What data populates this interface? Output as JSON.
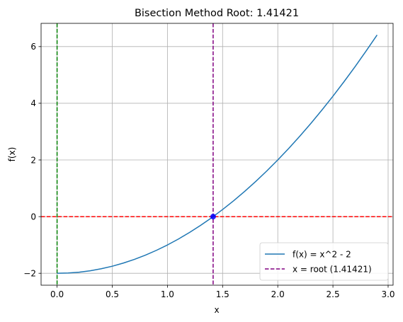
{
  "chart_data": {
    "type": "line",
    "title": "Bisection Method Root: 1.41421",
    "xlabel": "x",
    "ylabel": "f(x)",
    "xlim": [
      -0.145,
      3.045
    ],
    "ylim": [
      -2.42,
      6.82
    ],
    "grid": true,
    "x_ticks": [
      0.0,
      0.5,
      1.0,
      1.5,
      2.0,
      2.5,
      3.0
    ],
    "x_tick_labels": [
      "0.0",
      "0.5",
      "1.0",
      "1.5",
      "2.0",
      "2.5",
      "3.0"
    ],
    "y_ticks": [
      -2,
      0,
      2,
      4,
      6
    ],
    "y_tick_labels": [
      "−2",
      "0",
      "2",
      "4",
      "6"
    ],
    "series": [
      {
        "name": "f(x) = x^2 - 2",
        "color": "#1f77b4",
        "style": "solid",
        "x": [
          0.0,
          0.1,
          0.2,
          0.3,
          0.4,
          0.5,
          0.6,
          0.7,
          0.8,
          0.9,
          1.0,
          1.1,
          1.2,
          1.3,
          1.4,
          1.5,
          1.6,
          1.7,
          1.8,
          1.9,
          2.0,
          2.1,
          2.2,
          2.3,
          2.4,
          2.5,
          2.6,
          2.7,
          2.8,
          2.9
        ],
        "y": [
          -2.0,
          -1.99,
          -1.96,
          -1.91,
          -1.84,
          -1.75,
          -1.64,
          -1.51,
          -1.36,
          -1.19,
          -1.0,
          -0.79,
          -0.56,
          -0.31,
          -0.04,
          0.25,
          0.56,
          0.89,
          1.24,
          1.61,
          2.0,
          2.41,
          2.84,
          3.29,
          3.76,
          4.25,
          4.76,
          5.29,
          5.84,
          6.41
        ]
      }
    ],
    "reference_lines": [
      {
        "orientation": "vertical",
        "value": 1.41421,
        "color": "#800080",
        "style": "dashed",
        "label": "x = root (1.41421)"
      },
      {
        "orientation": "horizontal",
        "value": 0,
        "color": "#ff0000",
        "style": "dashed"
      },
      {
        "orientation": "vertical",
        "value": 0,
        "color": "#008000",
        "style": "dashed"
      }
    ],
    "root_point": {
      "x": 1.41421,
      "y": 0,
      "color": "#0000ff"
    },
    "legend": {
      "placement": "lower-right",
      "entries": [
        {
          "label": "f(x) = x^2 - 2",
          "color": "#1f77b4",
          "style": "solid"
        },
        {
          "label": "x = root (1.41421)",
          "color": "#800080",
          "style": "dashed"
        }
      ]
    }
  }
}
